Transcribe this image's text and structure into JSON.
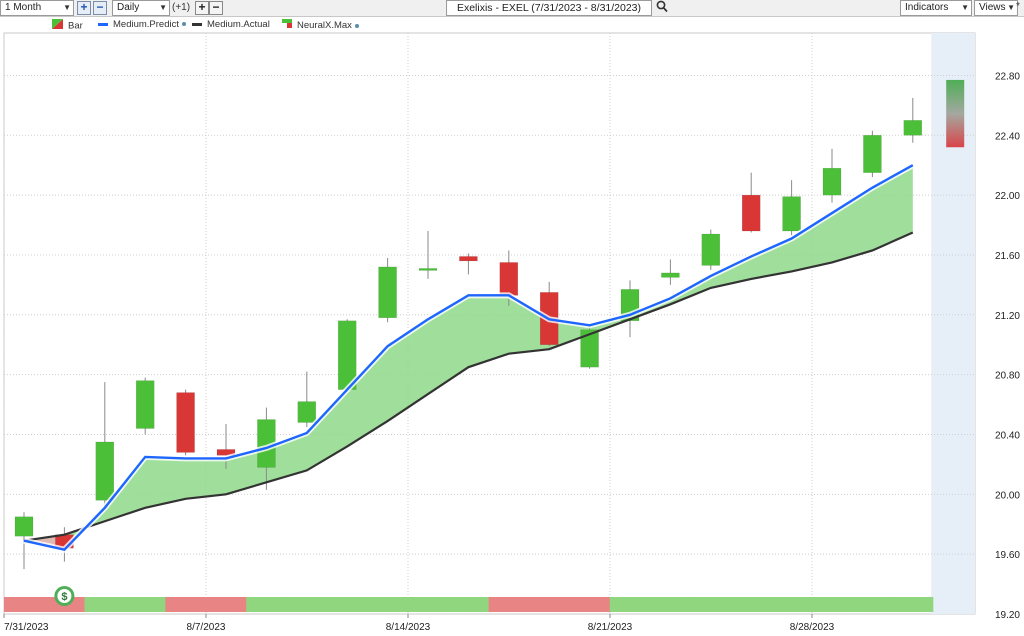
{
  "toolbar": {
    "period": "1 Month",
    "interval": "Daily",
    "offset": "(+1)",
    "title": "Exelixis - EXEL (7/31/2023 - 8/31/2023)",
    "indicators": "Indicators",
    "views": "Views",
    "views_marker": "*"
  },
  "legend": [
    {
      "label": "Bar"
    },
    {
      "label": "Medium.Predict",
      "color": "#1f66ff"
    },
    {
      "label": "Medium.Actual",
      "color": "#333333"
    },
    {
      "label": "NeuralX.Max"
    }
  ],
  "colors": {
    "up": "#4cbf38",
    "down": "#d93636",
    "fill_between": "#8fd88a",
    "forecast_bg": "#e6eef8",
    "signal_up": "#8fd67e",
    "signal_down": "#e98484"
  },
  "signal_marker": "$",
  "chart_data": {
    "type": "candlestick",
    "xlabels": [
      "7/31/2023",
      "8/7/2023",
      "8/14/2023",
      "8/21/2023",
      "8/28/2023"
    ],
    "yticks": [
      "22.80",
      "22.40",
      "22.00",
      "21.60",
      "21.20",
      "20.80",
      "20.40",
      "20.00",
      "19.60",
      "19.20"
    ],
    "ylim": [
      19.2,
      23.0
    ],
    "candles": [
      {
        "date": "7/31",
        "open": 19.72,
        "high": 19.88,
        "low": 19.5,
        "close": 19.85
      },
      {
        "date": "8/1",
        "open": 19.73,
        "high": 19.78,
        "low": 19.55,
        "close": 19.64
      },
      {
        "date": "8/2",
        "open": 19.96,
        "high": 20.75,
        "low": 19.92,
        "close": 20.35
      },
      {
        "date": "8/3",
        "open": 20.44,
        "high": 20.78,
        "low": 20.4,
        "close": 20.76
      },
      {
        "date": "8/4",
        "open": 20.68,
        "high": 20.7,
        "low": 20.26,
        "close": 20.28
      },
      {
        "date": "8/7",
        "open": 20.3,
        "high": 20.47,
        "low": 20.17,
        "close": 20.26
      },
      {
        "date": "8/8",
        "open": 20.18,
        "high": 20.58,
        "low": 20.03,
        "close": 20.5
      },
      {
        "date": "8/9",
        "open": 20.48,
        "high": 20.82,
        "low": 20.45,
        "close": 20.62
      },
      {
        "date": "8/10",
        "open": 20.7,
        "high": 21.17,
        "low": 20.68,
        "close": 21.16
      },
      {
        "date": "8/11",
        "open": 21.18,
        "high": 21.58,
        "low": 21.15,
        "close": 21.52
      },
      {
        "date": "8/14",
        "open": 21.5,
        "high": 21.76,
        "low": 21.44,
        "close": 21.51
      },
      {
        "date": "8/15",
        "open": 21.59,
        "high": 21.61,
        "low": 21.47,
        "close": 21.56
      },
      {
        "date": "8/16",
        "open": 21.55,
        "high": 21.63,
        "low": 21.26,
        "close": 21.33
      },
      {
        "date": "8/17",
        "open": 21.35,
        "high": 21.42,
        "low": 20.99,
        "close": 21.0
      },
      {
        "date": "8/18",
        "open": 20.85,
        "high": 21.14,
        "low": 20.84,
        "close": 21.1
      },
      {
        "date": "8/21",
        "open": 21.16,
        "high": 21.43,
        "low": 21.05,
        "close": 21.37
      },
      {
        "date": "8/22",
        "open": 21.45,
        "high": 21.57,
        "low": 21.4,
        "close": 21.48
      },
      {
        "date": "8/23",
        "open": 21.53,
        "high": 21.77,
        "low": 21.5,
        "close": 21.74
      },
      {
        "date": "8/24",
        "open": 22.0,
        "high": 22.15,
        "low": 21.75,
        "close": 21.76
      },
      {
        "date": "8/25",
        "open": 21.76,
        "high": 22.1,
        "low": 21.73,
        "close": 21.99
      },
      {
        "date": "8/28",
        "open": 22.0,
        "high": 22.31,
        "low": 21.95,
        "close": 22.18
      },
      {
        "date": "8/29",
        "open": 22.15,
        "high": 22.43,
        "low": 22.12,
        "close": 22.4
      },
      {
        "date": "8/30",
        "open": 22.4,
        "high": 22.65,
        "low": 22.35,
        "close": 22.5
      }
    ],
    "forecast": {
      "date": "8/31",
      "high": 22.77,
      "low": 22.32
    },
    "series": [
      {
        "name": "Medium.Predict",
        "values": [
          19.69,
          19.63,
          19.91,
          20.25,
          20.24,
          20.24,
          20.31,
          20.41,
          20.7,
          20.99,
          21.17,
          21.33,
          21.33,
          21.17,
          21.13,
          21.2,
          21.31,
          21.46,
          21.59,
          21.71,
          21.88,
          22.05,
          22.2
        ]
      },
      {
        "name": "Medium.Actual",
        "values": [
          19.69,
          19.73,
          19.82,
          19.91,
          19.97,
          20.0,
          20.08,
          20.16,
          20.32,
          20.49,
          20.67,
          20.85,
          20.94,
          20.97,
          21.07,
          21.17,
          21.27,
          21.38,
          21.44,
          21.49,
          21.55,
          21.63,
          21.75
        ]
      }
    ],
    "signal_bar": [
      "down",
      "down",
      "up",
      "up",
      "down",
      "down",
      "up",
      "up",
      "up",
      "up",
      "up",
      "up",
      "down",
      "down",
      "down",
      "up",
      "up",
      "up",
      "up",
      "up",
      "up",
      "up",
      "up"
    ]
  }
}
